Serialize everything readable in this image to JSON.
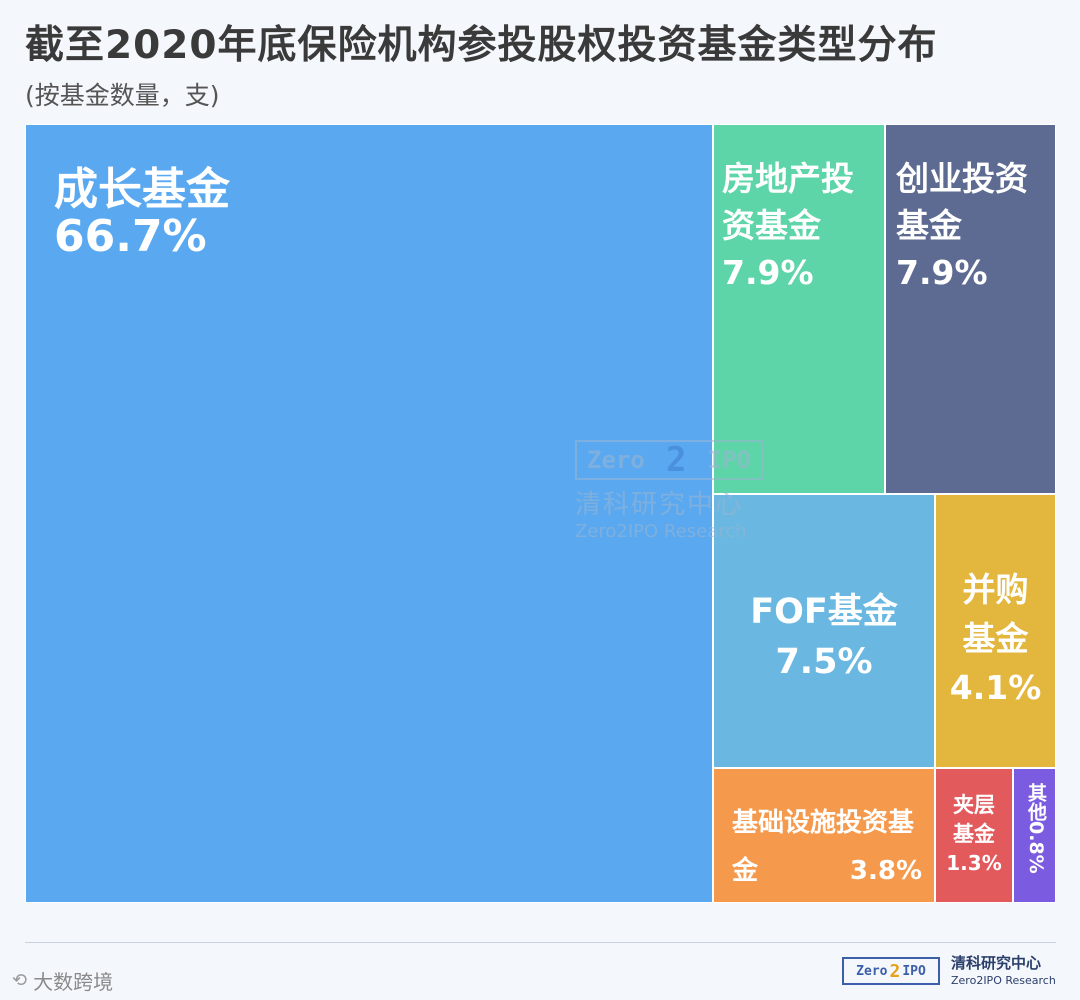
{
  "title": "截至2020年底保险机构参投股权投资基金类型分布",
  "subtitle": "(按基金数量，支)",
  "colors": {
    "growth": "#5aa9f0",
    "real_estate": "#5dd5a8",
    "venture": "#5d6b92",
    "fof": "#6ab8e2",
    "ma": "#e3b63e",
    "infrastructure": "#f59a4d",
    "mezzanine": "#e35a5d",
    "other": "#7b5ce0"
  },
  "chart_data": {
    "type": "treemap",
    "title": "截至2020年底保险机构参投股权投资基金类型分布",
    "subtitle": "(按基金数量，支)",
    "unit": "%",
    "items": [
      {
        "key": "growth",
        "label": "成长基金",
        "value": 66.7,
        "value_label": "66.7%"
      },
      {
        "key": "real_estate",
        "label": "房地产投资基金",
        "value": 7.9,
        "value_label": "7.9%"
      },
      {
        "key": "venture",
        "label": "创业投资基金",
        "value": 7.9,
        "value_label": "7.9%"
      },
      {
        "key": "fof",
        "label": "FOF基金",
        "value": 7.5,
        "value_label": "7.5%"
      },
      {
        "key": "ma",
        "label": "并购基金",
        "value": 4.1,
        "value_label": "4.1%"
      },
      {
        "key": "infrastructure",
        "label": "基础设施投资基金",
        "value": 3.8,
        "value_label": "3.8%"
      },
      {
        "key": "mezzanine",
        "label": "夹层基金",
        "value": 1.3,
        "value_label": "1.3%"
      },
      {
        "key": "other",
        "label": "其他",
        "value": 0.8,
        "value_label": "0.8%"
      }
    ]
  },
  "watermark": {
    "logo_left": "Zero",
    "logo_mid": "2",
    "logo_right": "IPO",
    "name_cn": "清科研究中心",
    "name_en": "Zero2IPO Research"
  },
  "footer": {
    "source_brand": "大数跨境",
    "logo_left": "Zero",
    "logo_mid": "2",
    "logo_right": "IPO",
    "org_cn": "清科研究中心",
    "org_en": "Zero2IPO Research"
  }
}
